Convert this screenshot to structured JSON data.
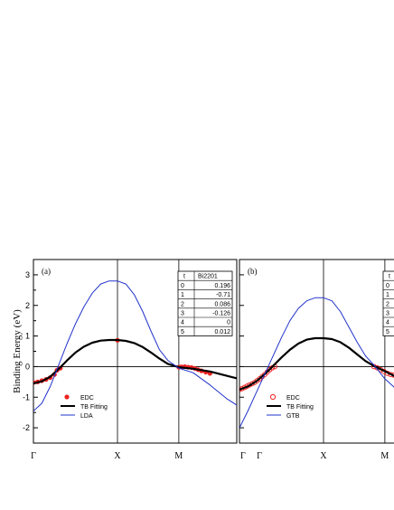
{
  "chart_data": [
    {
      "type": "line",
      "panel_label": "(a)",
      "ylabel": "Binding Energy (eV)",
      "ylim": [
        -2.5,
        3.5
      ],
      "yticks": [
        -2,
        -1,
        0,
        1,
        2,
        3
      ],
      "x_labels": [
        "Γ",
        "X",
        "M",
        "Γ"
      ],
      "x_label_positions": [
        0,
        1,
        1.73,
        2.73
      ],
      "series": [
        {
          "name": "EDC",
          "style": "filled-red-circles",
          "x": [
            0.0,
            0.05,
            0.1,
            0.15,
            0.2,
            0.25,
            0.28,
            0.32,
            1.0,
            1.73,
            1.76,
            1.8,
            1.84,
            1.88,
            1.92,
            1.96,
            2.0,
            2.05,
            2.1
          ],
          "y": [
            -0.52,
            -0.5,
            -0.46,
            -0.42,
            -0.36,
            -0.26,
            -0.12,
            -0.05,
            0.86,
            -0.02,
            -0.01,
            0.0,
            -0.02,
            -0.03,
            -0.06,
            -0.1,
            -0.14,
            -0.18,
            -0.22
          ]
        },
        {
          "name": "TB Fitting",
          "style": "black-thick",
          "x": [
            0.0,
            0.1,
            0.2,
            0.3,
            0.4,
            0.5,
            0.6,
            0.7,
            0.8,
            0.9,
            1.0,
            1.1,
            1.2,
            1.3,
            1.4,
            1.5,
            1.6,
            1.73,
            1.9,
            2.1,
            2.3,
            2.5,
            2.73
          ],
          "y": [
            -0.55,
            -0.48,
            -0.33,
            -0.08,
            0.2,
            0.46,
            0.65,
            0.78,
            0.85,
            0.87,
            0.87,
            0.84,
            0.77,
            0.64,
            0.46,
            0.26,
            0.09,
            -0.02,
            -0.07,
            -0.16,
            -0.3,
            -0.44,
            -0.55
          ]
        },
        {
          "name": "LDA",
          "style": "blue-thin",
          "x": [
            0.0,
            0.1,
            0.2,
            0.3,
            0.4,
            0.5,
            0.6,
            0.7,
            0.8,
            0.9,
            1.0,
            1.1,
            1.2,
            1.3,
            1.4,
            1.5,
            1.6,
            1.73,
            1.9,
            2.1,
            2.3,
            2.5,
            2.73
          ],
          "y": [
            -1.45,
            -1.2,
            -0.65,
            0.05,
            0.75,
            1.4,
            1.95,
            2.4,
            2.7,
            2.8,
            2.8,
            2.7,
            2.35,
            1.8,
            1.15,
            0.55,
            0.2,
            -0.05,
            -0.2,
            -0.6,
            -1.05,
            -1.4,
            -1.5
          ]
        }
      ],
      "table": {
        "headers": [
          "t",
          "Bi2201"
        ],
        "rows": [
          [
            "0",
            "0.196"
          ],
          [
            "1",
            "-0.71"
          ],
          [
            "2",
            "0.086"
          ],
          [
            "3",
            "-0.126"
          ],
          [
            "4",
            "0"
          ],
          [
            "5",
            "0.012"
          ]
        ]
      },
      "legend": "bottom-left"
    },
    {
      "type": "line",
      "panel_label": "(b)",
      "ylim": [
        -2.5,
        3.5
      ],
      "x_labels": [
        "Γ",
        "X",
        "M"
      ],
      "x_label_positions": [
        0,
        1,
        1.73
      ],
      "series": [
        {
          "name": "EDC",
          "style": "open-red-circles",
          "x": [
            0.0,
            0.03,
            0.06,
            0.09,
            0.12,
            0.15,
            0.18,
            0.21,
            0.24,
            0.27,
            0.3,
            0.33,
            0.36,
            0.39,
            0.42,
            1.6,
            1.64,
            1.68,
            1.72,
            1.76,
            1.8,
            1.84,
            1.88,
            1.92,
            1.96,
            2.0
          ],
          "y": [
            -0.75,
            -0.72,
            -0.68,
            -0.64,
            -0.6,
            -0.56,
            -0.52,
            -0.46,
            -0.4,
            -0.33,
            -0.26,
            -0.18,
            -0.1,
            -0.04,
            0.0,
            0.0,
            -0.04,
            -0.1,
            -0.16,
            -0.22,
            -0.26,
            -0.28,
            -0.3,
            -0.32,
            -0.34,
            -0.35
          ]
        },
        {
          "name": "TB Fitting",
          "style": "black-thick",
          "x": [
            0.0,
            0.1,
            0.2,
            0.3,
            0.4,
            0.5,
            0.6,
            0.7,
            0.8,
            0.9,
            1.0,
            1.1,
            1.2,
            1.3,
            1.4,
            1.5,
            1.6,
            1.73,
            1.85,
            2.0
          ],
          "y": [
            -0.75,
            -0.65,
            -0.48,
            -0.25,
            0.02,
            0.3,
            0.55,
            0.75,
            0.88,
            0.93,
            0.93,
            0.9,
            0.8,
            0.62,
            0.4,
            0.18,
            0.02,
            -0.15,
            -0.32,
            -0.45
          ]
        },
        {
          "name": "GTB",
          "style": "blue-thin",
          "x": [
            0.0,
            0.1,
            0.2,
            0.3,
            0.4,
            0.5,
            0.6,
            0.7,
            0.8,
            0.9,
            1.0,
            1.1,
            1.2,
            1.3,
            1.4,
            1.5,
            1.6,
            1.73,
            1.85,
            2.0
          ],
          "y": [
            -2.0,
            -1.45,
            -0.85,
            -0.25,
            0.35,
            0.95,
            1.5,
            1.9,
            2.15,
            2.25,
            2.25,
            2.15,
            1.8,
            1.3,
            0.8,
            0.35,
            0.05,
            -0.4,
            -0.7,
            -0.85
          ]
        }
      ],
      "table": {
        "headers": [
          "t"
        ],
        "rows": [
          [
            "0"
          ],
          [
            "1"
          ],
          [
            "2"
          ],
          [
            "3"
          ],
          [
            "4"
          ],
          [
            "5"
          ]
        ]
      },
      "legend": "bottom-left"
    }
  ]
}
